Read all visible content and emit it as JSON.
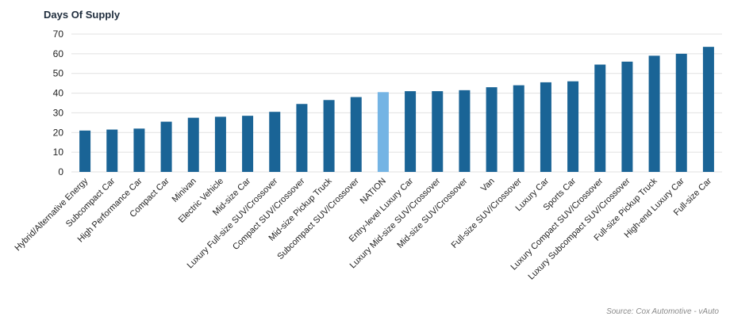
{
  "chart_data": {
    "type": "bar",
    "title": "Days Of Supply",
    "xlabel": "",
    "ylabel": "",
    "ylim": [
      0,
      70
    ],
    "yticks": [
      0,
      10,
      20,
      30,
      40,
      50,
      60,
      70
    ],
    "grid": true,
    "categories": [
      "Hybrid/Alternative Energy",
      "Subcompact Car",
      "High Performance Car",
      "Compact Car",
      "Minivan",
      "Electric Vehicle",
      "Mid-size Car",
      "Luxury Full-size SUV/Crossover",
      "Compact SUV/Crossover",
      "Mid-size Pickup Truck",
      "Subcompact SUV/Crossover",
      "NATION",
      "Entry-level Luxury Car",
      "Luxury Mid-size SUV/Crossover",
      "Mid-size SUV/Crossover",
      "Van",
      "Full-size SUV/Crossover",
      "Luxury Car",
      "Sports Car",
      "Luxury Compact SUV/Crossover",
      "Luxury Subcompact SUV/Crossover",
      "Full-size Pickup Truck",
      "High-end Luxury Car",
      "Full-size Car"
    ],
    "values": [
      21,
      21.5,
      22,
      25.5,
      27.5,
      28,
      28.5,
      30.5,
      34.5,
      36.5,
      38,
      40.5,
      41,
      41,
      41.5,
      43,
      44,
      45.5,
      46,
      54.5,
      56,
      59,
      60,
      63.5
    ],
    "colors": {
      "bar": "#1a6496",
      "highlight": "#74b4e4",
      "highlight_category": "NATION"
    }
  },
  "source": "Source: Cox Automotive - vAuto"
}
